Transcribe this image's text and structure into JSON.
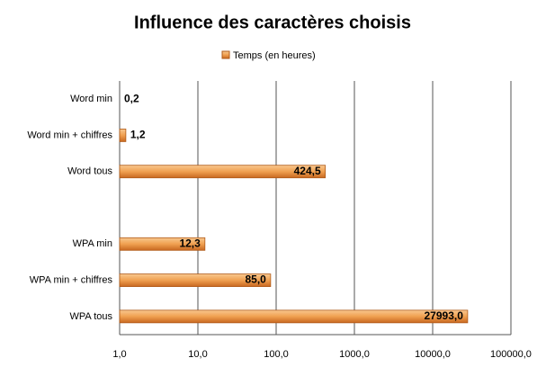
{
  "chart_data": {
    "type": "hbar",
    "title": "Influence des caractères choisis",
    "categories": [
      "Word min",
      "Word min + chiffres",
      "Word tous",
      null,
      "WPA min",
      "WPA min + chiffres",
      "WPA tous"
    ],
    "series": [
      {
        "name": "Temps (en heures)",
        "color": "#f0a050",
        "values": [
          0.2,
          1.2,
          424.5,
          null,
          12.3,
          85.0,
          27993.0
        ],
        "value_labels": [
          "0,2",
          "1,2",
          "424,5",
          null,
          "12,3",
          "85,0",
          "27993,0"
        ]
      }
    ],
    "xlim": [
      1,
      100000
    ],
    "xticks": [
      {
        "value": 1,
        "label": "1,0"
      },
      {
        "value": 10,
        "label": "10,0"
      },
      {
        "value": 100,
        "label": "100,0"
      },
      {
        "value": 1000,
        "label": "1000,0"
      },
      {
        "value": 10000,
        "label": "10000,0"
      },
      {
        "value": 100000,
        "label": "100000,0"
      }
    ],
    "log_x": true,
    "grid": true,
    "legend": "top"
  }
}
